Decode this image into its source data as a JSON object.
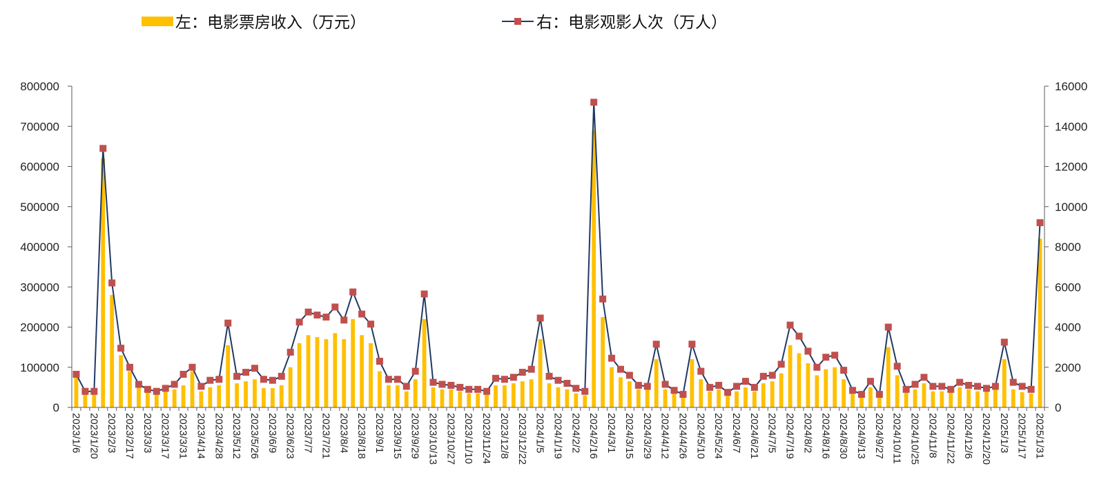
{
  "chart_data": {
    "type": "bar",
    "legend": {
      "placement": "top",
      "items": [
        {
          "label": "左：电影票房收入（万元）",
          "symbol": "bar",
          "color": "#FFC000"
        },
        {
          "label": "右：电影观影人次（万人）",
          "symbol": "line-square",
          "color": "#1F3864",
          "marker_color": "#C0504D"
        }
      ]
    },
    "x": [
      "2023/1/6",
      "2023/1/13",
      "2023/1/20",
      "2023/1/27",
      "2023/2/3",
      "2023/2/10",
      "2023/2/17",
      "2023/2/24",
      "2023/3/3",
      "2023/3/10",
      "2023/3/17",
      "2023/3/24",
      "2023/3/31",
      "2023/4/7",
      "2023/4/14",
      "2023/4/21",
      "2023/4/28",
      "2023/5/5",
      "2023/5/12",
      "2023/5/19",
      "2023/5/26",
      "2023/6/2",
      "2023/6/9",
      "2023/6/16",
      "2023/6/23",
      "2023/6/30",
      "2023/7/7",
      "2023/7/14",
      "2023/7/21",
      "2023/7/28",
      "2023/8/4",
      "2023/8/11",
      "2023/8/18",
      "2023/8/25",
      "2023/9/1",
      "2023/9/8",
      "2023/9/15",
      "2023/9/22",
      "2023/9/29",
      "2023/10/6",
      "2023/10/13",
      "2023/10/20",
      "2023/10/27",
      "2023/11/3",
      "2023/11/10",
      "2023/11/17",
      "2023/11/24",
      "2023/12/1",
      "2023/12/8",
      "2023/12/15",
      "2023/12/22",
      "2023/12/29",
      "2024/1/5",
      "2024/1/12",
      "2024/1/19",
      "2024/1/26",
      "2024/2/2",
      "2024/2/9",
      "2024/2/16",
      "2024/2/23",
      "2024/3/1",
      "2024/3/8",
      "2024/3/15",
      "2024/3/22",
      "2024/3/29",
      "2024/4/5",
      "2024/4/12",
      "2024/4/19",
      "2024/4/26",
      "2024/5/3",
      "2024/5/10",
      "2024/5/17",
      "2024/5/24",
      "2024/5/31",
      "2024/6/7",
      "2024/6/14",
      "2024/6/21",
      "2024/6/28",
      "2024/7/5",
      "2024/7/12",
      "2024/7/19",
      "2024/7/26",
      "2024/8/2",
      "2024/8/9",
      "2024/8/16",
      "2024/8/23",
      "2024/8/30",
      "2024/9/6",
      "2024/9/13",
      "2024/9/20",
      "2024/9/27",
      "2024/10/4",
      "2024/10/11",
      "2024/10/18",
      "2024/10/25",
      "2024/11/1",
      "2024/11/8",
      "2024/11/15",
      "2024/11/22",
      "2024/11/29",
      "2024/12/6",
      "2024/12/13",
      "2024/12/20",
      "2024/12/27",
      "2025/1/3",
      "2025/1/10",
      "2025/1/17",
      "2025/1/24",
      "2025/1/31"
    ],
    "x_tick_labels": [
      "2023/1/6",
      "2023/1/20",
      "2023/2/3",
      "2023/2/17",
      "2023/3/3",
      "2023/3/17",
      "2023/3/31",
      "2023/4/14",
      "2023/4/28",
      "2023/5/12",
      "2023/5/26",
      "2023/6/9",
      "2023/6/23",
      "2023/7/7",
      "2023/7/21",
      "2023/8/4",
      "2023/8/18",
      "2023/9/1",
      "2023/9/15",
      "2023/9/29",
      "2023/10/13",
      "2023/10/27",
      "2023/11/10",
      "2023/11/24",
      "2023/12/8",
      "2023/12/22",
      "2024/1/5",
      "2024/1/19",
      "2024/2/2",
      "2024/2/16",
      "2024/3/1",
      "2024/3/15",
      "2024/3/29",
      "2024/4/12",
      "2024/4/26",
      "2024/5/10",
      "2024/5/24",
      "2024/6/7",
      "2024/6/21",
      "2024/7/5",
      "2024/7/19",
      "2024/8/2",
      "2024/8/16",
      "2024/8/30",
      "2024/9/13",
      "2024/9/27",
      "2024/10/11",
      "2024/10/25",
      "2024/11/8",
      "2024/11/22",
      "2024/12/6",
      "2024/12/20",
      "2025/1/3",
      "2025/1/17",
      "2025/1/31"
    ],
    "y_left": {
      "min": 0,
      "max": 800000,
      "ticks": [
        0,
        100000,
        200000,
        300000,
        400000,
        500000,
        600000,
        700000,
        800000
      ]
    },
    "y_right": {
      "min": 0,
      "max": 16000,
      "ticks": [
        0,
        2000,
        4000,
        6000,
        8000,
        10000,
        12000,
        14000,
        16000
      ]
    },
    "grid": false,
    "series": [
      {
        "axis": "left",
        "type": "bar",
        "color": "#FFC000",
        "values": [
          75000,
          35000,
          35000,
          620000,
          280000,
          130000,
          90000,
          50000,
          40000,
          35000,
          40000,
          45000,
          55000,
          90000,
          40000,
          50000,
          55000,
          155000,
          60000,
          65000,
          70000,
          48000,
          48000,
          55000,
          100000,
          160000,
          180000,
          175000,
          170000,
          185000,
          170000,
          220000,
          180000,
          160000,
          90000,
          55000,
          55000,
          40000,
          70000,
          220000,
          50000,
          45000,
          45000,
          40000,
          35000,
          35000,
          33000,
          55000,
          55000,
          60000,
          65000,
          70000,
          170000,
          60000,
          50000,
          45000,
          35000,
          30000,
          690000,
          225000,
          100000,
          75000,
          65000,
          45000,
          45000,
          120000,
          45000,
          35000,
          25000,
          120000,
          70000,
          40000,
          45000,
          30000,
          40000,
          50000,
          40000,
          60000,
          65000,
          85000,
          155000,
          135000,
          110000,
          80000,
          95000,
          100000,
          70000,
          35000,
          25000,
          50000,
          25000,
          150000,
          80000,
          40000,
          45000,
          60000,
          40000,
          40000,
          40000,
          50000,
          45000,
          40000,
          40000,
          45000,
          120000,
          45000,
          38000,
          35000,
          420000
        ]
      },
      {
        "axis": "right",
        "type": "line",
        "color": "#1F3864",
        "marker": "square",
        "marker_color": "#C0504D",
        "values": [
          1650,
          800,
          800,
          12900,
          6200,
          2950,
          2000,
          1150,
          900,
          800,
          950,
          1150,
          1650,
          2000,
          1050,
          1350,
          1400,
          4200,
          1550,
          1750,
          1950,
          1400,
          1350,
          1550,
          2750,
          4250,
          4750,
          4600,
          4500,
          5000,
          4350,
          5750,
          4650,
          4150,
          2300,
          1400,
          1400,
          1050,
          1800,
          5650,
          1250,
          1150,
          1100,
          1000,
          900,
          900,
          800,
          1450,
          1400,
          1500,
          1750,
          1900,
          4450,
          1550,
          1350,
          1200,
          950,
          800,
          15200,
          5400,
          2450,
          1900,
          1600,
          1100,
          1050,
          3150,
          1150,
          850,
          650,
          3150,
          1800,
          1000,
          1100,
          750,
          1050,
          1300,
          1000,
          1550,
          1600,
          2150,
          4100,
          3550,
          2800,
          2000,
          2500,
          2600,
          1850,
          850,
          650,
          1300,
          650,
          4000,
          2050,
          900,
          1150,
          1500,
          1050,
          1050,
          900,
          1250,
          1100,
          1050,
          950,
          1050,
          3250,
          1250,
          1050,
          900,
          9200
        ]
      }
    ]
  }
}
